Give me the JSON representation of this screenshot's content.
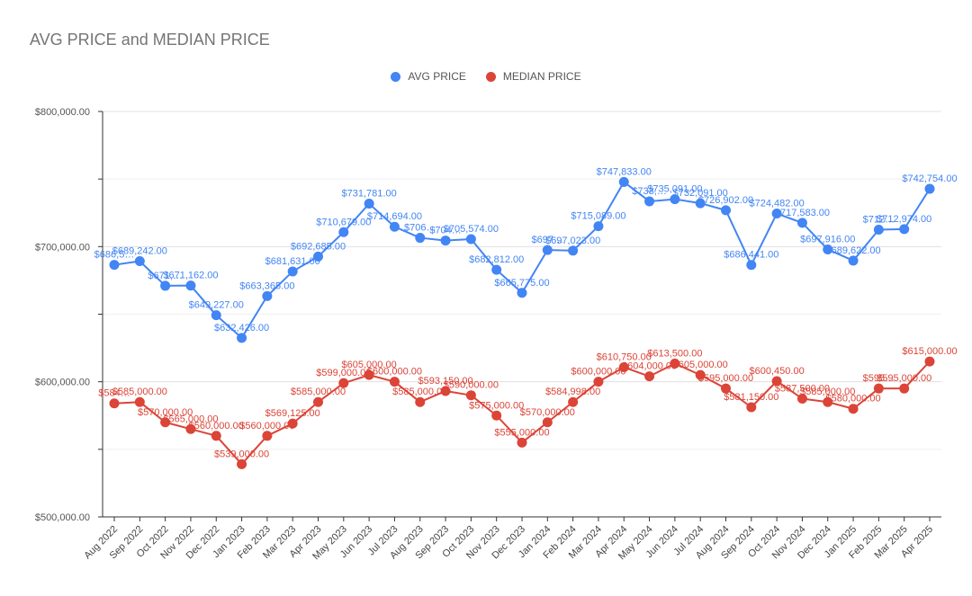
{
  "chart_data": {
    "type": "line",
    "title": "AVG PRICE and MEDIAN PRICE",
    "xlabel": "",
    "ylabel": "",
    "ylim": [
      500000,
      800000
    ],
    "y_ticks": [
      "$500,000.00",
      "$600,000.00",
      "$700,000.00",
      "$800,000.00"
    ],
    "legend_position": "top",
    "grid": true,
    "categories": [
      "Aug 2022",
      "Sep 2022",
      "Oct 2022",
      "Nov 2022",
      "Dec 2022",
      "Jan 2023",
      "Feb 2023",
      "Mar 2023",
      "Apr 2023",
      "May 2023",
      "Jun 2023",
      "Jul 2023",
      "Aug 2023",
      "Sep 2023",
      "Oct 2023",
      "Nov 2023",
      "Dec 2023",
      "Jan 2024",
      "Feb 2024",
      "Mar 2024",
      "Apr 2024",
      "May 2024",
      "Jun 2024",
      "Jul 2024",
      "Aug 2024",
      "Sep 2024",
      "Oct 2024",
      "Nov 2024",
      "Dec 2024",
      "Jan 2025",
      "Feb 2025",
      "Mar 2025",
      "Apr 2025"
    ],
    "series": [
      {
        "name": "AVG PRICE",
        "color": "#4285f4",
        "values": [
          686500,
          689242,
          671000,
          671162,
          649227,
          632426,
          663365,
          681631,
          692685,
          710679,
          731781,
          714694,
          706500,
          704500,
          705574,
          682812,
          665775,
          697500,
          697023,
          715089,
          747833,
          733500,
          735091,
          732091,
          726902,
          686441,
          724482,
          717583,
          697916,
          689622,
          712500,
          712974,
          742754
        ],
        "labels": [
          "$686,5…",
          "$689,242.00",
          "$671,…",
          "$671,162.00",
          "$649,227.00",
          "$632,426.00",
          "$663,365.00",
          "$681,631.00",
          "$692,685.00",
          "$710,679.00",
          "$731,781.00",
          "$714,694.00",
          "$706…",
          "$704…",
          "$705,574.00",
          "$682,812.00",
          "$665,775.00",
          "$697…",
          "$697,023.00",
          "$715,089.00",
          "$747,833.00",
          "$733,…",
          "$735,091.00",
          "$732,091.00",
          "$726,902.00",
          "$686,441.00",
          "$724,482.00",
          "$717,583.00",
          "$697,916.00",
          "$689,622.00",
          "$712…",
          "$712,974.00",
          "$742,754.00"
        ]
      },
      {
        "name": "MEDIAN PRICE",
        "color": "#db4437",
        "values": [
          584000,
          585000,
          570000,
          565000,
          560000,
          539000,
          560000,
          569125,
          585000,
          599000,
          605000,
          600000,
          585000,
          593150,
          590000,
          575000,
          555000,
          570000,
          584998,
          600000,
          610750,
          604000,
          613500,
          605000,
          595000,
          581150,
          600450,
          587500,
          585000,
          580000,
          595000,
          595000,
          615000
        ],
        "labels": [
          "$584…",
          "$585,000.00",
          "$570,000.00",
          "$565,000.00",
          "$560,000.00",
          "$539,000.00",
          "$560,000.00",
          "$569,125.00",
          "$585,000.00",
          "$599,000.00",
          "$605,000.00",
          "$600,000.00",
          "$585,000.00",
          "$593,150.00",
          "$590,000.00",
          "$575,000.00",
          "$555,000.00",
          "$570,000.00",
          "$584,998.00",
          "$600,000.00",
          "$610,750.00",
          "$604,000.00",
          "$613,500.00",
          "$605,000.00",
          "$595,000.00",
          "$581,150.00",
          "$600,450.00",
          "$587,500.00",
          "$585,000.00",
          "$580,000.00",
          "$595…",
          "$595,000.00",
          "$615,000.00"
        ]
      }
    ]
  }
}
